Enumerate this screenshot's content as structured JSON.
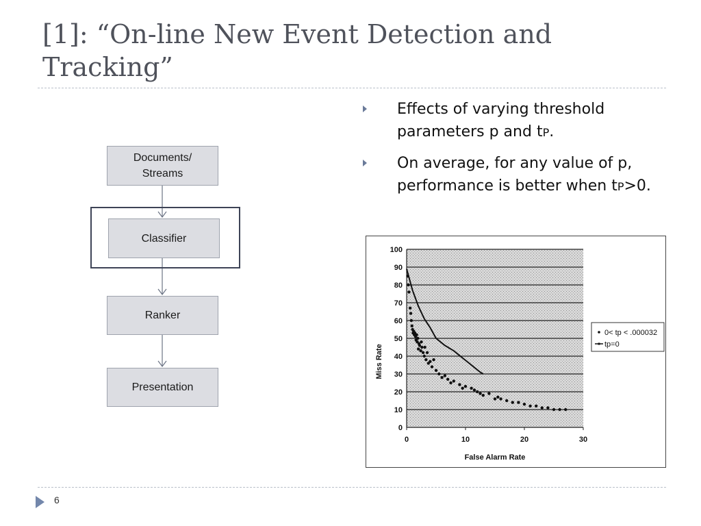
{
  "slide": {
    "title_line1": "[1]: “On-line New Event Detection and",
    "title_line2": "Tracking”",
    "page_number": "6"
  },
  "flowchart": {
    "boxes": [
      {
        "label_line1": "Documents/",
        "label_line2": "Streams"
      },
      {
        "label_line1": "Classifier",
        "label_line2": ""
      },
      {
        "label_line1": "Ranker",
        "label_line2": ""
      },
      {
        "label_line1": "Presentation",
        "label_line2": ""
      }
    ],
    "highlighted": "Classifier"
  },
  "bullets": [
    {
      "text_a": "Effects of varying threshold parameters p and t",
      "sub": "P",
      "text_b": "."
    },
    {
      "text_a": "On average, for any value of p, performance is better when t",
      "sub": "P",
      "text_b": ">0."
    }
  ],
  "chart_data": {
    "type": "scatter",
    "xlabel": "False Alarm Rate",
    "ylabel": "Miss Rate",
    "xlim": [
      0,
      30
    ],
    "ylim": [
      0,
      100
    ],
    "x_ticks": [
      0,
      10,
      20,
      30
    ],
    "y_ticks": [
      0,
      10,
      20,
      30,
      40,
      50,
      60,
      70,
      80,
      90,
      100
    ],
    "grid": "horizontal",
    "legend_position": "right",
    "series": [
      {
        "name": "0< tp < .000032",
        "style": "points",
        "points": [
          [
            0.2,
            85
          ],
          [
            0.3,
            80
          ],
          [
            0.4,
            76
          ],
          [
            0.6,
            67
          ],
          [
            0.7,
            64
          ],
          [
            0.8,
            60
          ],
          [
            0.9,
            57
          ],
          [
            1.0,
            55
          ],
          [
            1.1,
            53
          ],
          [
            1.2,
            54
          ],
          [
            1.3,
            52
          ],
          [
            1.4,
            53
          ],
          [
            1.5,
            51
          ],
          [
            1.6,
            49
          ],
          [
            1.7,
            52
          ],
          [
            1.8,
            48
          ],
          [
            1.9,
            50
          ],
          [
            2.0,
            44
          ],
          [
            2.1,
            47
          ],
          [
            2.2,
            46
          ],
          [
            2.4,
            43
          ],
          [
            2.5,
            48
          ],
          [
            2.6,
            45
          ],
          [
            2.8,
            42
          ],
          [
            3.0,
            40
          ],
          [
            3.1,
            45
          ],
          [
            3.3,
            38
          ],
          [
            3.5,
            42
          ],
          [
            3.7,
            36
          ],
          [
            4.0,
            37
          ],
          [
            4.3,
            34
          ],
          [
            4.6,
            38
          ],
          [
            5.0,
            32
          ],
          [
            5.5,
            30
          ],
          [
            6.0,
            28
          ],
          [
            6.5,
            29
          ],
          [
            7.0,
            27
          ],
          [
            7.5,
            25
          ],
          [
            8.0,
            26
          ],
          [
            9.0,
            24
          ],
          [
            9.5,
            22
          ],
          [
            10.0,
            23
          ],
          [
            11.0,
            22
          ],
          [
            11.5,
            21
          ],
          [
            12.0,
            20
          ],
          [
            12.5,
            19
          ],
          [
            13.0,
            18
          ],
          [
            14.0,
            19
          ],
          [
            15.0,
            16
          ],
          [
            15.5,
            17
          ],
          [
            16.0,
            16
          ],
          [
            17.0,
            15
          ],
          [
            18.0,
            14
          ],
          [
            19.0,
            14
          ],
          [
            20.0,
            13
          ],
          [
            21.0,
            12
          ],
          [
            22.0,
            12
          ],
          [
            23.0,
            11
          ],
          [
            24.0,
            11
          ],
          [
            25.0,
            10
          ],
          [
            26.0,
            10
          ],
          [
            27.0,
            10
          ]
        ]
      },
      {
        "name": "tp=0",
        "style": "line",
        "points": [
          [
            0.0,
            89
          ],
          [
            1.0,
            77
          ],
          [
            2.0,
            68
          ],
          [
            3.0,
            61
          ],
          [
            4.0,
            56
          ],
          [
            5.0,
            50
          ],
          [
            6.5,
            46
          ],
          [
            8.0,
            43
          ],
          [
            9.5,
            39
          ],
          [
            11.0,
            35
          ],
          [
            12.5,
            31
          ],
          [
            13.0,
            30
          ]
        ]
      }
    ]
  }
}
